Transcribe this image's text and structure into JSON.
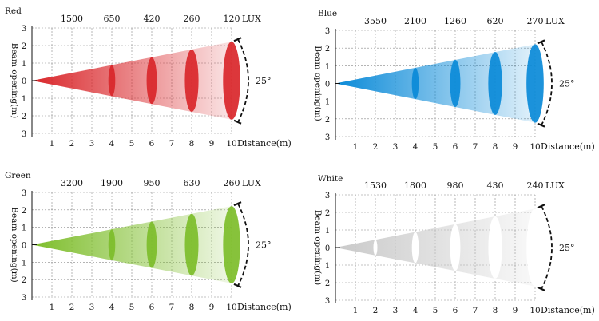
{
  "chart_data": [
    {
      "type": "beam-diagram",
      "title": "Red",
      "color": "#d9262a",
      "lux_unit": "LUX",
      "angle_label": "25°",
      "ylabel": "Beam opening(m)",
      "xlabel": "Distance(m)",
      "x_ticks": [
        "1",
        "2",
        "3",
        "4",
        "5",
        "6",
        "7",
        "8",
        "9",
        "10"
      ],
      "y_ticks": [
        "3",
        "2",
        "1",
        "0",
        "1",
        "2",
        "3"
      ],
      "xlim": [
        0,
        10
      ],
      "ylim": [
        -3,
        3
      ],
      "lux": [
        {
          "distance": 2,
          "value": "1500"
        },
        {
          "distance": 4,
          "value": "650"
        },
        {
          "distance": 6,
          "value": "420"
        },
        {
          "distance": 8,
          "value": "260"
        },
        {
          "distance": 10,
          "value": "120"
        }
      ],
      "ellipses_at": [
        4,
        6,
        8,
        10
      ]
    },
    {
      "type": "beam-diagram",
      "title": "Blue",
      "color": "#0a8ad8",
      "lux_unit": "LUX",
      "angle_label": "25°",
      "ylabel": "Beam opening(m)",
      "xlabel": "Distance(m)",
      "x_ticks": [
        "1",
        "2",
        "3",
        "4",
        "5",
        "6",
        "7",
        "8",
        "9",
        "10"
      ],
      "y_ticks": [
        "3",
        "2",
        "1",
        "0",
        "1",
        "2",
        "3"
      ],
      "xlim": [
        0,
        10
      ],
      "ylim": [
        -3,
        3
      ],
      "lux": [
        {
          "distance": 2,
          "value": "3550"
        },
        {
          "distance": 4,
          "value": "2100"
        },
        {
          "distance": 6,
          "value": "1260"
        },
        {
          "distance": 8,
          "value": "620"
        },
        {
          "distance": 10,
          "value": "270"
        }
      ],
      "ellipses_at": [
        4,
        6,
        8,
        10
      ]
    },
    {
      "type": "beam-diagram",
      "title": "Green",
      "color": "#7dbd2a",
      "lux_unit": "LUX",
      "angle_label": "25°",
      "ylabel": "Beam opening(m)",
      "xlabel": "Distance(m)",
      "x_ticks": [
        "1",
        "2",
        "3",
        "4",
        "5",
        "6",
        "7",
        "8",
        "9",
        "10"
      ],
      "y_ticks": [
        "3",
        "2",
        "1",
        "0",
        "1",
        "2",
        "3"
      ],
      "xlim": [
        0,
        10
      ],
      "ylim": [
        -3,
        3
      ],
      "lux": [
        {
          "distance": 2,
          "value": "3200"
        },
        {
          "distance": 4,
          "value": "1900"
        },
        {
          "distance": 6,
          "value": "950"
        },
        {
          "distance": 8,
          "value": "630"
        },
        {
          "distance": 10,
          "value": "260"
        }
      ],
      "ellipses_at": [
        4,
        6,
        8,
        10
      ]
    },
    {
      "type": "beam-diagram",
      "title": "White",
      "color": "#c9c9c9",
      "ellipse_fill": "#ffffff",
      "lux_unit": "LUX",
      "angle_label": "25°",
      "ylabel": "Beam opening(m)",
      "xlabel": "Distance(m)",
      "x_ticks": [
        "1",
        "2",
        "3",
        "4",
        "5",
        "6",
        "7",
        "8",
        "9",
        "10"
      ],
      "y_ticks": [
        "3",
        "2",
        "1",
        "0",
        "1",
        "2",
        "3"
      ],
      "xlim": [
        0,
        10
      ],
      "ylim": [
        -3,
        3
      ],
      "lux": [
        {
          "distance": 2,
          "value": "1530"
        },
        {
          "distance": 4,
          "value": "1800"
        },
        {
          "distance": 6,
          "value": "980"
        },
        {
          "distance": 8,
          "value": "430"
        },
        {
          "distance": 10,
          "value": "240"
        }
      ],
      "ellipses_at": [
        2,
        4,
        6,
        8,
        10
      ]
    }
  ]
}
